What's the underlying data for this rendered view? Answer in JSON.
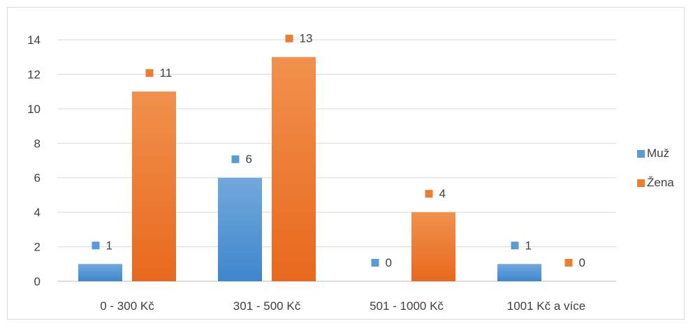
{
  "chart_data": {
    "type": "bar",
    "categories": [
      "0 - 300 Kč",
      "301 - 500 Kč",
      "501 - 1000 Kč",
      "1001 Kč a více"
    ],
    "series": [
      {
        "name": "Muž",
        "values": [
          1,
          6,
          0,
          1
        ],
        "color": "#5b9bd5"
      },
      {
        "name": "Žena",
        "values": [
          11,
          13,
          4,
          0
        ],
        "color": "#ed7d31"
      }
    ],
    "ylim": [
      0,
      14
    ],
    "yticks": [
      0,
      2,
      4,
      6,
      8,
      10,
      12,
      14
    ],
    "grid": true,
    "legend": "right",
    "title": "",
    "xlabel": "",
    "ylabel": ""
  }
}
